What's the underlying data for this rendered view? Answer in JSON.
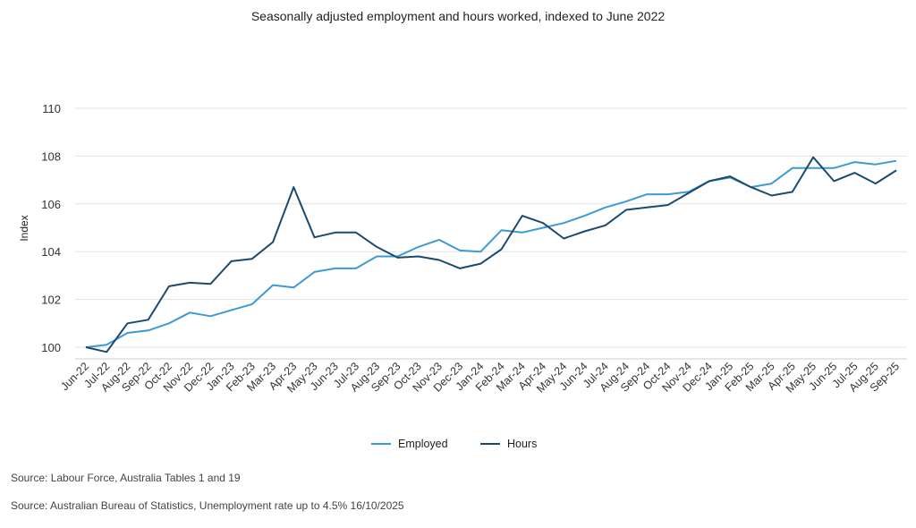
{
  "chart_data": {
    "type": "line",
    "title": "Seasonally adjusted employment and hours worked, indexed to June 2022",
    "xlabel": "",
    "ylabel": "Index",
    "ylim": [
      100,
      110
    ],
    "yticks": [
      100,
      102,
      104,
      106,
      108,
      110
    ],
    "grid": true,
    "legend_position": "bottom",
    "categories": [
      "Jun-22",
      "Jul-22",
      "Aug-22",
      "Sep-22",
      "Oct-22",
      "Nov-22",
      "Dec-22",
      "Jan-23",
      "Feb-23",
      "Mar-23",
      "Apr-23",
      "May-23",
      "Jun-23",
      "Jul-23",
      "Aug-23",
      "Sep-23",
      "Oct-23",
      "Nov-23",
      "Dec-23",
      "Jan-24",
      "Feb-24",
      "Mar-24",
      "Apr-24",
      "May-24",
      "Jun-24",
      "Jul-24",
      "Aug-24",
      "Sep-24",
      "Oct-24",
      "Nov-24",
      "Dec-24",
      "Jan-25",
      "Feb-25",
      "Mar-25",
      "Apr-25",
      "May-25",
      "Jun-25",
      "Jul-25",
      "Aug-25",
      "Sep-25"
    ],
    "series": [
      {
        "name": "Employed",
        "color": "#3e9ad2",
        "values": [
          100.0,
          100.1,
          100.6,
          100.7,
          101.0,
          101.45,
          101.3,
          101.55,
          101.8,
          102.6,
          102.5,
          103.15,
          103.3,
          103.3,
          103.8,
          103.8,
          104.2,
          104.5,
          104.05,
          104.0,
          104.9,
          104.8,
          105.0,
          105.2,
          105.5,
          105.85,
          106.1,
          106.4,
          106.4,
          106.5,
          106.95,
          107.1,
          106.7,
          106.85,
          107.5,
          107.5,
          107.5,
          107.75,
          107.65,
          107.8
        ]
      },
      {
        "name": "Hours",
        "color": "#1a4a70",
        "values": [
          100.0,
          99.8,
          101.0,
          101.15,
          102.55,
          102.7,
          102.65,
          103.6,
          103.7,
          104.4,
          106.7,
          104.6,
          104.8,
          104.8,
          104.2,
          103.75,
          103.8,
          103.65,
          103.3,
          103.5,
          104.1,
          105.5,
          105.2,
          104.55,
          104.85,
          105.1,
          105.75,
          105.85,
          105.95,
          106.45,
          106.95,
          107.15,
          106.7,
          106.35,
          106.5,
          107.95,
          106.95,
          107.3,
          106.85,
          107.4
        ]
      }
    ]
  },
  "sources": [
    "Source: Labour Force, Australia Tables 1 and 19",
    "Source: Australian Bureau of Statistics, Unemployment rate up to 4.5% 16/10/2025"
  ]
}
